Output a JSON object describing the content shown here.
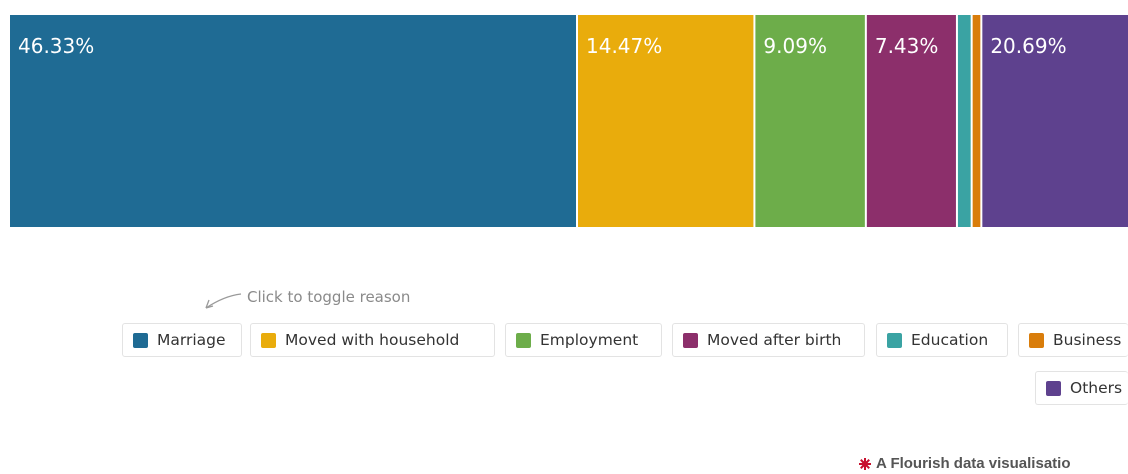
{
  "chart_data": {
    "type": "bar",
    "orientation": "stacked-horizontal-100",
    "series": [
      {
        "name": "Marriage",
        "value": 46.33,
        "label": "46.33%",
        "color": "#1f6b94"
      },
      {
        "name": "Moved with household",
        "value": 14.47,
        "label": "14.47%",
        "color": "#e9ac0c"
      },
      {
        "name": "Employment",
        "value": 9.09,
        "label": "9.09%",
        "color": "#6dad4a"
      },
      {
        "name": "Moved after birth",
        "value": 7.43,
        "label": "7.43%",
        "color": "#8c2f6b"
      },
      {
        "name": "Education",
        "value": 1.2,
        "label": "",
        "color": "#3aa3a3"
      },
      {
        "name": "Business",
        "value": 0.79,
        "label": "",
        "color": "#d97d0b"
      },
      {
        "name": "Others",
        "value": 20.69,
        "label": "20.69%",
        "color": "#5e418e"
      }
    ]
  },
  "hint_text": "Click to toggle reason",
  "legend": [
    {
      "label": "Marriage",
      "color": "#1f6b94"
    },
    {
      "label": "Moved with household",
      "color": "#e9ac0c"
    },
    {
      "label": "Employment",
      "color": "#6dad4a"
    },
    {
      "label": "Moved after birth",
      "color": "#8c2f6b"
    },
    {
      "label": "Education",
      "color": "#3aa3a3"
    },
    {
      "label": "Business",
      "color": "#d97d0b"
    },
    {
      "label": "Others",
      "color": "#5e418e"
    }
  ],
  "footer": {
    "text": "A Flourish data visualisatio",
    "icon": "flourish-logo-icon",
    "icon_color": "#c8102e"
  }
}
